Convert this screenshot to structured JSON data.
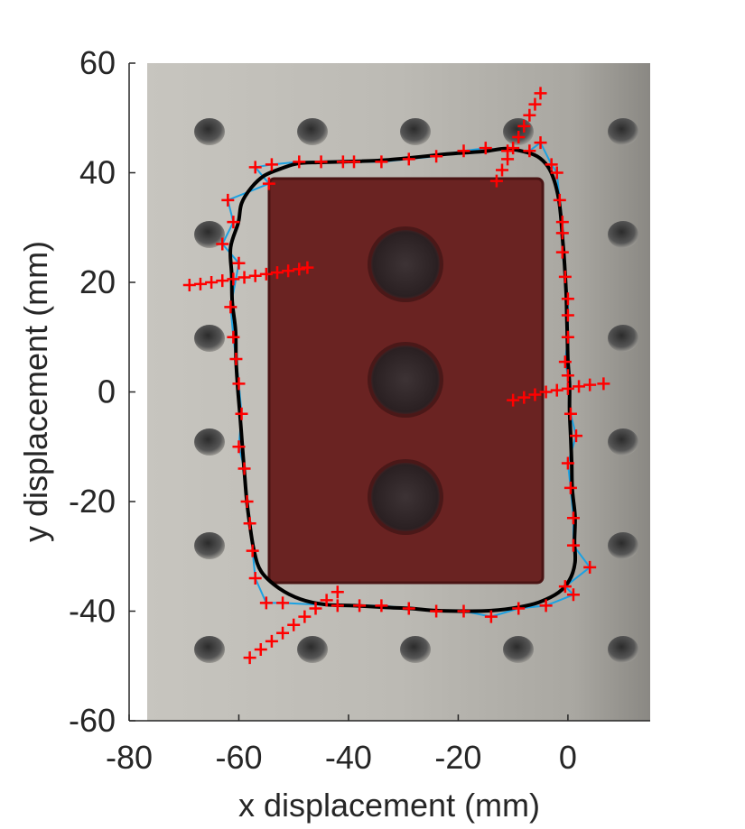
{
  "chart_data": {
    "type": "scatter",
    "title": "",
    "xlabel": "x displacement (mm)",
    "ylabel": "y displacement (mm)",
    "xlim": [
      -80,
      15
    ],
    "ylim": [
      -60,
      60
    ],
    "x_ticks": [
      -80,
      -60,
      -40,
      -20,
      0
    ],
    "y_ticks": [
      -60,
      -40,
      -20,
      0,
      20,
      40,
      60
    ],
    "x_tick_labels": [
      "-80",
      "-60",
      "-40",
      "-20",
      "0"
    ],
    "y_tick_labels": [
      "-60",
      "-40",
      "-20",
      "0",
      "20",
      "40",
      "60"
    ],
    "grid": false,
    "legend": "none",
    "background": "photo of red brick specimen with three circular holes on perforated aluminium plate",
    "colors": {
      "fit_contour": "#000000",
      "detected_edge": "#1ba1e2",
      "marker": "#ff0000",
      "brick": "#6e2222",
      "plate": "#bdbbb5"
    },
    "series": [
      {
        "values": [
          [
            -54.5,
            38
          ],
          [
            -57,
            41
          ],
          [
            -54,
            41.5
          ],
          [
            -49,
            42
          ],
          [
            -45,
            42
          ],
          [
            -41,
            42
          ],
          [
            -39,
            42
          ],
          [
            -34,
            42
          ],
          [
            -29,
            42.5
          ],
          [
            -24,
            43
          ],
          [
            -19,
            44
          ],
          [
            -15,
            44.5
          ],
          [
            -11,
            44
          ],
          [
            -7,
            44
          ],
          [
            -5,
            45.5
          ],
          [
            -3,
            41.5
          ],
          [
            -2,
            40
          ],
          [
            -1.5,
            35
          ],
          [
            -1,
            31
          ],
          [
            -1,
            29
          ],
          [
            -1,
            25.5
          ],
          [
            -0.5,
            21
          ],
          [
            0,
            17
          ],
          [
            0,
            14
          ],
          [
            0,
            10
          ],
          [
            -0.5,
            5.5
          ],
          [
            0,
            3
          ],
          [
            0.5,
            -4
          ],
          [
            1.5,
            -8
          ],
          [
            0,
            -13
          ],
          [
            0.5,
            -17.5
          ],
          [
            1,
            -23
          ],
          [
            1,
            -28
          ],
          [
            4,
            -32
          ],
          [
            -0.5,
            -35.5
          ],
          [
            1,
            -37
          ],
          [
            -4,
            -39
          ],
          [
            -9,
            -39.5
          ],
          [
            -14,
            -41
          ],
          [
            -19,
            -40
          ],
          [
            -24,
            -40
          ],
          [
            -29,
            -39.5
          ],
          [
            -34,
            -39
          ],
          [
            -38,
            -39
          ],
          [
            -42,
            -39
          ],
          [
            -52,
            -38.5
          ],
          [
            -55,
            -38.5
          ],
          [
            -57,
            -34
          ],
          [
            -57.5,
            -29
          ],
          [
            -58,
            -24
          ],
          [
            -58.5,
            -20
          ],
          [
            -59,
            -14
          ],
          [
            -60,
            -10
          ],
          [
            -59.5,
            -4
          ],
          [
            -60,
            1.5
          ],
          [
            -60.5,
            6
          ],
          [
            -61,
            10
          ],
          [
            -61.5,
            15.5
          ],
          [
            -60,
            23.5
          ],
          [
            -63,
            27
          ],
          [
            -61,
            31
          ],
          [
            -62,
            35
          ]
        ]
      },
      {
        "values": [
          [
            -69,
            19.5
          ],
          [
            -67,
            19.7
          ],
          [
            -65,
            20
          ],
          [
            -63,
            20.3
          ],
          [
            -61,
            20.6
          ],
          [
            -59,
            20.9
          ],
          [
            -57,
            21.2
          ],
          [
            -55,
            21.5
          ],
          [
            -53,
            21.8
          ],
          [
            -51,
            22.1
          ],
          [
            -49,
            22.4
          ],
          [
            -47.5,
            22.7
          ]
        ]
      },
      {
        "values": [
          [
            -13,
            38.5
          ],
          [
            -12,
            40.5
          ],
          [
            -11,
            42.5
          ],
          [
            -10,
            44.5
          ],
          [
            -9,
            46.5
          ],
          [
            -8,
            48.5
          ],
          [
            -7,
            50.5
          ],
          [
            -6,
            52.5
          ],
          [
            -5,
            54.5
          ]
        ]
      },
      {
        "values": [
          [
            -10,
            -1.5
          ],
          [
            -8,
            -1
          ],
          [
            -6,
            -0.5
          ],
          [
            -4,
            0
          ],
          [
            -2,
            0.3
          ],
          [
            0,
            0.6
          ],
          [
            2,
            1
          ],
          [
            4,
            1.3
          ],
          [
            6.5,
            1.5
          ]
        ]
      },
      {
        "values": [
          [
            -58,
            -48.5
          ],
          [
            -56,
            -47
          ],
          [
            -54,
            -45.5
          ],
          [
            -52,
            -44
          ],
          [
            -50,
            -42.5
          ],
          [
            -48,
            -41
          ],
          [
            -46,
            -39.5
          ],
          [
            -44,
            -38
          ],
          [
            -42,
            -36.5
          ]
        ]
      }
    ]
  }
}
